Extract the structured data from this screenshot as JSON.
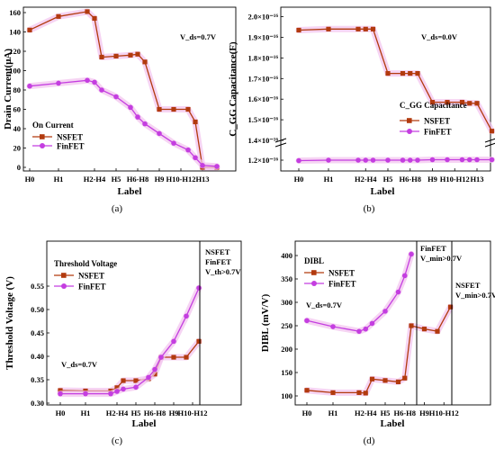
{
  "colors": {
    "nsfet": "#b23a0e",
    "finfet": "#c43ee0",
    "glow": "#f3c6ef",
    "axis": "#000000"
  },
  "chart_data": [
    {
      "type": "line",
      "caption": "(a)",
      "xlabel": "Label",
      "ylabel": "Drain Current(μA)",
      "tick_labels": [
        "H0",
        "H1",
        "H2-H4",
        "H5",
        "H6-H8",
        "H9",
        "H10-H12",
        "H13"
      ],
      "ylim": [
        0,
        160
      ],
      "yticks": [
        "0",
        "20",
        "40",
        "60",
        "80",
        "100",
        "120",
        "140",
        "160"
      ],
      "annotations": [
        "V_ds=0.7V"
      ],
      "legend_title": "On Current",
      "legend_position": "bottom-left",
      "x": [
        0,
        1,
        2,
        2.25,
        2.5,
        3,
        3.5,
        3.75,
        4,
        4.5,
        5,
        5.5,
        5.75,
        6,
        6.5
      ],
      "series": [
        {
          "name": "NSFET",
          "color": "#b23a0e",
          "marker": "square",
          "values": [
            142,
            156,
            161,
            154,
            114,
            115,
            116,
            117,
            109,
            60,
            60,
            60,
            47,
            0,
            0
          ]
        },
        {
          "name": "FinFET",
          "color": "#c43ee0",
          "marker": "circle",
          "values": [
            84,
            87,
            90,
            88,
            80,
            73,
            62,
            52,
            45,
            35,
            25,
            18,
            10,
            2,
            1
          ]
        }
      ]
    },
    {
      "type": "line",
      "caption": "(b)",
      "xlabel": "Label",
      "ylabel": "C_GG Capacitance(F)",
      "tick_labels": [
        "H0",
        "H1",
        "H2-H4",
        "H5",
        "H6-H8",
        "H9",
        "H10-H12",
        "H13"
      ],
      "yticks": [
        "1.2×10⁻¹⁶",
        "1.4×10⁻¹⁶",
        "1.5×10⁻¹⁶",
        "1.6×10⁻¹⁶",
        "1.7×10⁻¹⁶",
        "1.8×10⁻¹⁶",
        "1.9×10⁻¹⁶",
        "2.0×10⁻¹⁶"
      ],
      "axis_break": true,
      "annotations": [
        "V_ds=0.0V"
      ],
      "legend_title": "C_GG Capacitance",
      "legend_position": "right",
      "x": [
        0,
        1,
        2,
        2.25,
        2.5,
        3,
        3.5,
        3.75,
        4,
        4.5,
        5,
        5.5,
        5.75,
        6,
        6.5
      ],
      "series": [
        {
          "name": "NSFET",
          "color": "#b23a0e",
          "marker": "square",
          "values": [
            1.935e-16,
            1.94e-16,
            1.94e-16,
            1.94e-16,
            1.94e-16,
            1.725e-16,
            1.725e-16,
            1.725e-16,
            1.725e-16,
            1.585e-16,
            1.585e-16,
            1.585e-16,
            1.58e-16,
            1.58e-16,
            1.445e-16
          ]
        },
        {
          "name": "FinFET",
          "color": "#c43ee0",
          "marker": "circle",
          "values": [
            1.195e-16,
            1.2e-16,
            1.2e-16,
            1.2e-16,
            1.2e-16,
            1.2e-16,
            1.2e-16,
            1.2e-16,
            1.2e-16,
            1.205e-16,
            1.205e-16,
            1.205e-16,
            1.205e-16,
            1.205e-16,
            1.205e-16
          ]
        }
      ]
    },
    {
      "type": "line",
      "caption": "(c)",
      "xlabel": "Label",
      "ylabel": "Threshold Voltage (V)",
      "tick_labels": [
        "H0",
        "H1",
        "H2-H4",
        "H5",
        "H6-H8",
        "H9",
        "H10-H12"
      ],
      "ylim": [
        0.3,
        0.56
      ],
      "yticks": [
        "0.30",
        "0.35",
        "0.40",
        "0.45",
        "0.50",
        "0.55"
      ],
      "annotations": [
        "V_ds=0.7V",
        "NSFET",
        "FinFET",
        "V_th>0.7V"
      ],
      "legend_title": "Threshold Voltage",
      "legend_position": "top-left",
      "x": [
        0,
        1,
        2,
        2.25,
        2.5,
        3,
        3.5,
        3.75,
        4,
        4.5,
        5,
        5.5
      ],
      "series": [
        {
          "name": "NSFET",
          "color": "#b23a0e",
          "marker": "square",
          "values": [
            0.327,
            0.326,
            0.326,
            0.333,
            0.348,
            0.348,
            0.352,
            0.362,
            0.398,
            0.398,
            0.398,
            0.432
          ]
        },
        {
          "name": "FinFET",
          "color": "#c43ee0",
          "marker": "circle",
          "values": [
            0.32,
            0.32,
            0.32,
            0.325,
            0.33,
            0.334,
            0.355,
            0.372,
            0.398,
            0.432,
            0.486,
            0.546
          ]
        }
      ]
    },
    {
      "type": "line",
      "caption": "(d)",
      "xlabel": "Label",
      "ylabel": "DIBL (mV/V)",
      "tick_labels": [
        "H0",
        "H1",
        "H2-H4",
        "H5",
        "H6-H8",
        "H9",
        "H10-H12"
      ],
      "ylim": [
        90,
        420
      ],
      "yticks": [
        "100",
        "150",
        "200",
        "250",
        "300",
        "350",
        "400"
      ],
      "annotations": [
        "V_ds=0.7V",
        "FinFET",
        "V_min>0.7V",
        "NSFET",
        "V_min>0.7V"
      ],
      "legend_title": "DIBL",
      "legend_position": "top-left",
      "x": [
        0,
        1,
        2,
        2.25,
        2.5,
        3,
        3.5,
        3.75,
        4,
        4.5,
        5,
        5.5
      ],
      "series": [
        {
          "name": "NSFET",
          "color": "#b23a0e",
          "marker": "square",
          "values": [
            112,
            107,
            107,
            106,
            136,
            133,
            130,
            138,
            250,
            243,
            238,
            290
          ]
        },
        {
          "name": "FinFET",
          "color": "#c43ee0",
          "marker": "circle",
          "values": [
            261,
            248,
            238,
            243,
            255,
            281,
            322,
            357,
            403,
            null,
            null,
            null
          ]
        }
      ]
    }
  ]
}
